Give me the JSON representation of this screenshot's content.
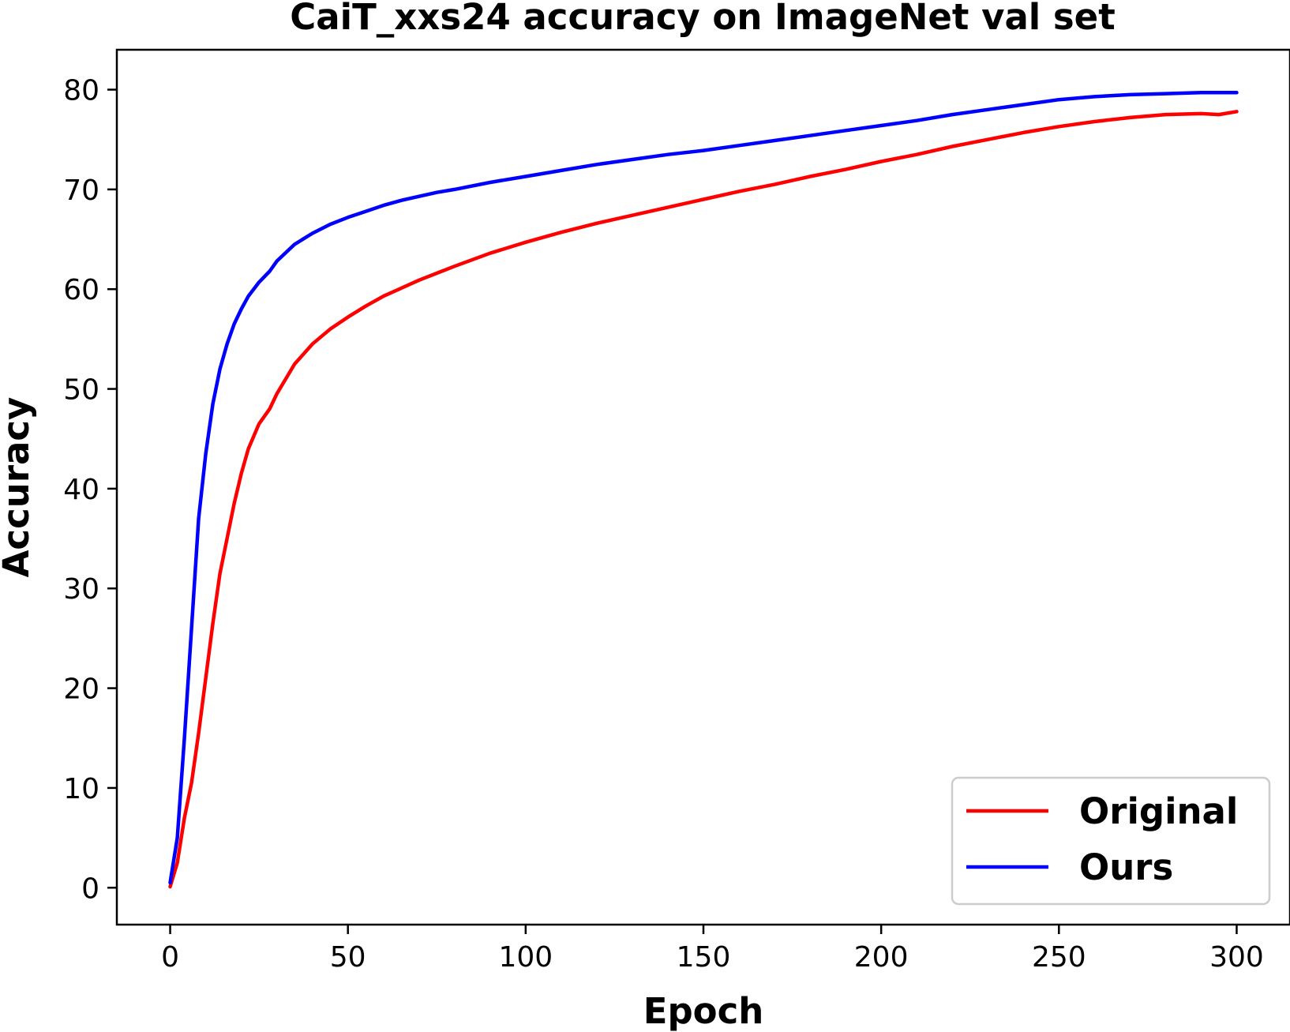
{
  "chart_data": {
    "type": "line",
    "title": "CaiT_xxs24 accuracy on ImageNet val set",
    "xlabel": "Epoch",
    "ylabel": "Accuracy",
    "xlim": [
      -15,
      315
    ],
    "ylim": [
      -3.7,
      84
    ],
    "xticks": [
      0,
      50,
      100,
      150,
      200,
      250,
      300
    ],
    "yticks": [
      0,
      10,
      20,
      30,
      40,
      50,
      60,
      70,
      80
    ],
    "xtick_labels": [
      "0",
      "50",
      "100",
      "150",
      "200",
      "250",
      "300"
    ],
    "ytick_labels": [
      "0",
      "10",
      "20",
      "30",
      "40",
      "50",
      "60",
      "70",
      "80"
    ],
    "grid": false,
    "legend_position": "lower-right",
    "series": [
      {
        "name": "Original",
        "color": "#ff0000",
        "x": [
          0,
          2,
          4,
          6,
          8,
          10,
          12,
          14,
          16,
          18,
          20,
          22,
          25,
          28,
          30,
          35,
          40,
          45,
          50,
          55,
          60,
          65,
          70,
          75,
          80,
          90,
          100,
          110,
          120,
          130,
          140,
          150,
          160,
          170,
          180,
          190,
          200,
          210,
          220,
          230,
          240,
          250,
          260,
          270,
          280,
          290,
          295,
          300
        ],
        "y": [
          0.1,
          2.5,
          7.0,
          10.5,
          15.5,
          21.0,
          26.5,
          31.5,
          35.0,
          38.5,
          41.5,
          44.0,
          46.5,
          48.0,
          49.5,
          52.5,
          54.5,
          56.0,
          57.2,
          58.3,
          59.3,
          60.1,
          60.9,
          61.6,
          62.3,
          63.6,
          64.7,
          65.7,
          66.6,
          67.4,
          68.2,
          69.0,
          69.8,
          70.5,
          71.3,
          72.0,
          72.8,
          73.5,
          74.3,
          75.0,
          75.7,
          76.3,
          76.8,
          77.2,
          77.5,
          77.6,
          77.5,
          77.8
        ]
      },
      {
        "name": "Ours",
        "color": "#0000ff",
        "x": [
          0,
          2,
          4,
          6,
          8,
          10,
          12,
          14,
          16,
          18,
          20,
          22,
          25,
          28,
          30,
          35,
          40,
          45,
          50,
          55,
          60,
          65,
          70,
          75,
          80,
          90,
          100,
          110,
          120,
          130,
          140,
          150,
          160,
          170,
          180,
          190,
          200,
          210,
          220,
          230,
          240,
          250,
          260,
          270,
          280,
          290,
          295,
          300
        ],
        "y": [
          0.5,
          5.0,
          15.0,
          26.0,
          37.0,
          43.5,
          48.5,
          52.0,
          54.5,
          56.5,
          58.0,
          59.3,
          60.7,
          61.8,
          62.8,
          64.5,
          65.6,
          66.5,
          67.2,
          67.8,
          68.4,
          68.9,
          69.3,
          69.7,
          70.0,
          70.7,
          71.3,
          71.9,
          72.5,
          73.0,
          73.5,
          73.9,
          74.4,
          74.9,
          75.4,
          75.9,
          76.4,
          76.9,
          77.5,
          78.0,
          78.5,
          79.0,
          79.3,
          79.5,
          79.6,
          79.7,
          79.7,
          79.7
        ]
      }
    ]
  }
}
